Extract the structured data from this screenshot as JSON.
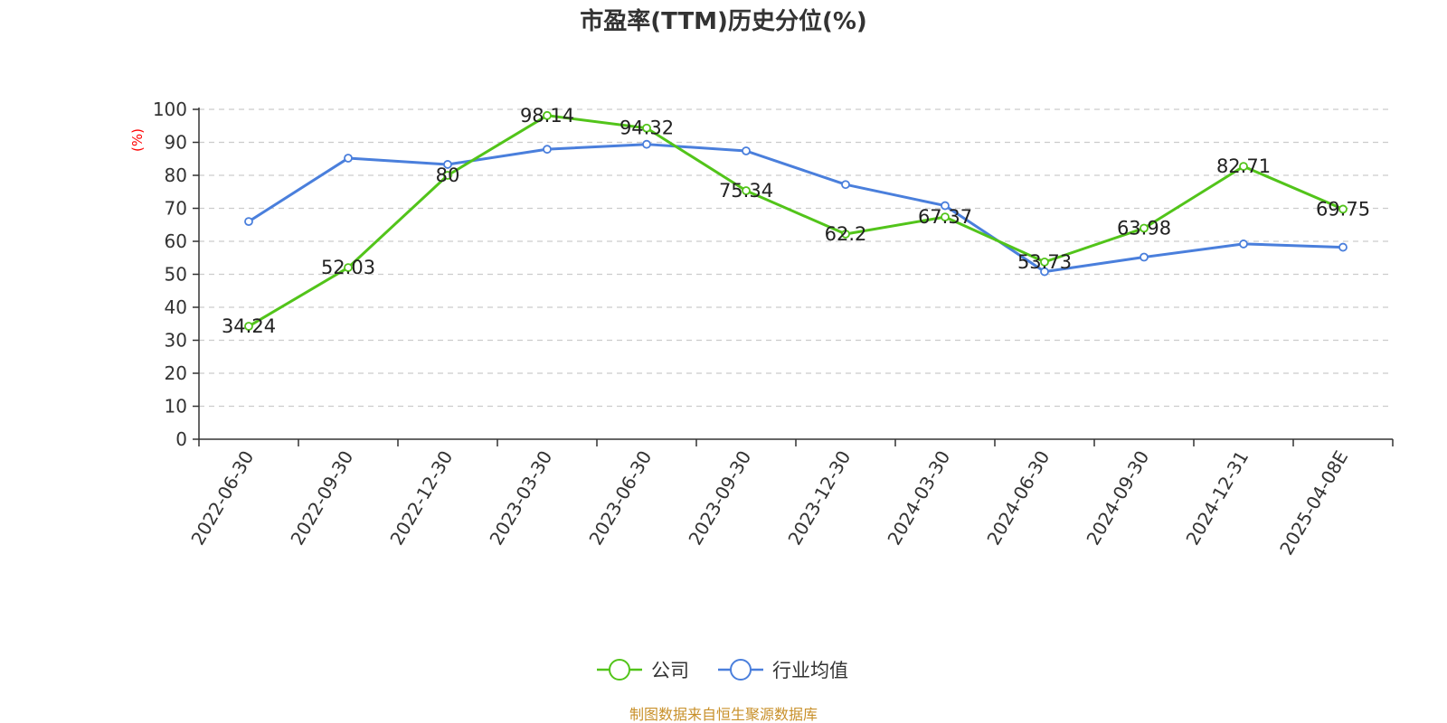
{
  "chart_data": {
    "type": "line",
    "title": "市盈率(TTM)历史分位(%)",
    "ylabel": "(%)",
    "ylim": [
      0,
      100
    ],
    "yticks": [
      0,
      10,
      20,
      30,
      40,
      50,
      60,
      70,
      80,
      90,
      100
    ],
    "grid": true,
    "legend_position": "bottom",
    "categories": [
      "2022-06-30",
      "2022-09-30",
      "2022-12-30",
      "2023-03-30",
      "2023-06-30",
      "2023-09-30",
      "2023-12-30",
      "2024-03-30",
      "2024-06-30",
      "2024-09-30",
      "2024-12-31",
      "2025-04-08E"
    ],
    "series": [
      {
        "name": "公司",
        "color": "#52c41a",
        "values": [
          34.24,
          52.03,
          80,
          98.14,
          94.32,
          75.34,
          62.2,
          67.37,
          53.73,
          63.98,
          82.71,
          69.75
        ],
        "labels": [
          "34.24",
          "52.03",
          "80",
          "98.14",
          "94.32",
          "75.34",
          "62.2",
          "67.37",
          "53.73",
          "63.98",
          "82.71",
          "69.75"
        ]
      },
      {
        "name": "行业均值",
        "color": "#4a7fdc",
        "values": [
          66,
          85.2,
          83.3,
          87.9,
          89.4,
          87.4,
          77.2,
          70.8,
          50.8,
          55.2,
          59.2,
          58.2
        ]
      }
    ],
    "ylabel_color": "#ff0000",
    "source": "制图数据来自恒生聚源数据库",
    "source_color": "#c8902a"
  }
}
